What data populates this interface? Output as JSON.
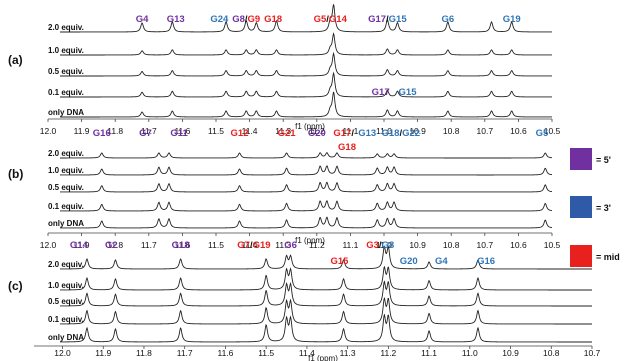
{
  "colors": {
    "five_prime": "#7030a0",
    "three_prime": "#2e75b6",
    "mid": "#e8201e",
    "trace": "#222222"
  },
  "axis_label": "f1 (ppm)",
  "legend": [
    {
      "label": "= 5'",
      "color": "#7030a0"
    },
    {
      "label": "= 3'",
      "color": "#2e5aa8"
    },
    {
      "label": "= mid",
      "color": "#e8201e"
    }
  ],
  "panels": [
    {
      "id": "(a)",
      "xlim": [
        12.0,
        10.5
      ],
      "ticks": [
        "12.0",
        "11.9",
        "11.8",
        "11.7",
        "11.6",
        "11.5",
        "11.4",
        "11.3",
        "11.2",
        "11.1",
        "11.0",
        "10.9",
        "10.8",
        "10.7",
        "10.6",
        "10.5"
      ],
      "traces": [
        "2.0 equiv.",
        "1.0 equiv.",
        "0.5 equiv.",
        "0.1 equiv.",
        "only DNA"
      ],
      "peaks": [
        11.72,
        11.63,
        11.47,
        11.41,
        11.38,
        11.32,
        11.16,
        11.15,
        10.99,
        10.96,
        10.81,
        10.68,
        10.62
      ],
      "labels": [
        {
          "parts": [
            {
              "t": "G4",
              "c": "five_prime"
            }
          ],
          "ppm": 11.72
        },
        {
          "parts": [
            {
              "t": "G13",
              "c": "five_prime"
            }
          ],
          "ppm": 11.62
        },
        {
          "parts": [
            {
              "t": "G24",
              "c": "three_prime"
            }
          ],
          "ppm": 11.49
        },
        {
          "parts": [
            {
              "t": "G8",
              "c": "five_prime"
            },
            {
              "t": "/",
              "c": "black"
            },
            {
              "t": "G9",
              "c": "mid"
            }
          ],
          "ppm": 11.41
        },
        {
          "parts": [
            {
              "t": "G18",
              "c": "mid"
            }
          ],
          "ppm": 11.33
        },
        {
          "parts": [
            {
              "t": "G5",
              "c": "mid"
            },
            {
              "t": "/",
              "c": "black"
            },
            {
              "t": "G14",
              "c": "mid"
            }
          ],
          "ppm": 11.16
        },
        {
          "parts": [
            {
              "t": "G17",
              "c": "five_prime"
            },
            {
              "t": "/",
              "c": "black"
            },
            {
              "t": "G15",
              "c": "three_prime"
            }
          ],
          "ppm": 10.99
        },
        {
          "parts": [
            {
              "t": "G6",
              "c": "three_prime"
            }
          ],
          "ppm": 10.81
        },
        {
          "parts": [
            {
              "t": "G19",
              "c": "three_prime"
            }
          ],
          "ppm": 10.62
        },
        {
          "parts": [
            {
              "t": "G17",
              "c": "five_prime"
            }
          ],
          "ppm": 11.01,
          "low": true
        },
        {
          "parts": [
            {
              "t": "G15",
              "c": "three_prime"
            }
          ],
          "ppm": 10.93,
          "low": true
        }
      ]
    },
    {
      "id": "(b)",
      "xlim": [
        12.0,
        10.5
      ],
      "ticks": [
        "12.0",
        "11.9",
        "11.8",
        "11.7",
        "11.6",
        "11.5",
        "11.4",
        "11.3",
        "11.2",
        "11.1",
        "11.0",
        "10.9",
        "10.8",
        "10.7",
        "10.6",
        "10.5",
        "10."
      ],
      "traces": [
        "2.0 equiv.",
        "1.0 equiv.",
        "0.5 equiv.",
        "0.1 equiv.",
        "only DNA"
      ],
      "peaks": [
        11.84,
        11.67,
        11.64,
        11.43,
        11.29,
        11.19,
        11.17,
        11.14,
        11.02,
        10.99,
        10.97,
        10.52
      ],
      "labels": [
        {
          "parts": [
            {
              "t": "G16",
              "c": "five_prime"
            }
          ],
          "ppm": 11.84
        },
        {
          "parts": [
            {
              "t": "G7",
              "c": "five_prime"
            }
          ],
          "ppm": 11.71
        },
        {
          "parts": [
            {
              "t": "G11",
              "c": "five_prime"
            }
          ],
          "ppm": 11.61
        },
        {
          "parts": [
            {
              "t": "G12",
              "c": "mid"
            }
          ],
          "ppm": 11.43
        },
        {
          "parts": [
            {
              "t": "G21",
              "c": "mid"
            }
          ],
          "ppm": 11.29
        },
        {
          "parts": [
            {
              "t": "G20",
              "c": "five_prime"
            }
          ],
          "ppm": 11.2
        },
        {
          "parts": [
            {
              "t": "G17",
              "c": "mid"
            },
            {
              "t": "/",
              "c": "black"
            }
          ],
          "ppm": 11.12
        },
        {
          "parts": [
            {
              "t": "G13",
              "c": "three_prime"
            }
          ],
          "ppm": 11.05
        },
        {
          "parts": [
            {
              "t": "G18",
              "c": "three_prime"
            },
            {
              "t": "/",
              "c": "black"
            },
            {
              "t": "G22",
              "c": "three_prime"
            }
          ],
          "ppm": 10.95
        },
        {
          "parts": [
            {
              "t": "G5",
              "c": "three_prime"
            }
          ],
          "ppm": 10.53
        },
        {
          "parts": [
            {
              "t": "G18",
              "c": "mid"
            }
          ],
          "ppm": 11.11,
          "low": true
        }
      ]
    },
    {
      "id": "(c)",
      "xlim": [
        12.07,
        10.7
      ],
      "ticks": [
        "12.0",
        "11.9",
        "11.8",
        "11.7",
        "11.6",
        "11.5",
        "11.4",
        "11.3",
        "11.2",
        "11.1",
        "11.0",
        "10.9",
        "10.8",
        "10.7"
      ],
      "traces": [
        "2.0 equiv.",
        "1.0 equiv.",
        "0.5 equiv.",
        "0.1 equiv.",
        "only DNA"
      ],
      "peaks": [
        11.94,
        11.87,
        11.71,
        11.5,
        11.45,
        11.44,
        11.31,
        11.21,
        11.2,
        11.1,
        10.98
      ],
      "labels": [
        {
          "parts": [
            {
              "t": "G14",
              "c": "five_prime"
            }
          ],
          "ppm": 11.96
        },
        {
          "parts": [
            {
              "t": "G2",
              "c": "five_prime"
            }
          ],
          "ppm": 11.88
        },
        {
          "parts": [
            {
              "t": "G18",
              "c": "five_prime"
            }
          ],
          "ppm": 11.71
        },
        {
          "parts": [
            {
              "t": "G7",
              "c": "mid"
            },
            {
              "t": "/",
              "c": "black"
            },
            {
              "t": "G19",
              "c": "mid"
            }
          ],
          "ppm": 11.53
        },
        {
          "parts": [
            {
              "t": "G6",
              "c": "five_prime"
            }
          ],
          "ppm": 11.44
        },
        {
          "parts": [
            {
              "t": "G3",
              "c": "mid"
            },
            {
              "t": "/",
              "c": "black"
            },
            {
              "t": "G8",
              "c": "three_prime"
            }
          ],
          "ppm": 11.22
        },
        {
          "parts": [
            {
              "t": "G15",
              "c": "mid"
            }
          ],
          "ppm": 11.32,
          "low": true
        },
        {
          "parts": [
            {
              "t": "G20",
              "c": "three_prime"
            }
          ],
          "ppm": 11.15,
          "low": true
        },
        {
          "parts": [
            {
              "t": "G4",
              "c": "three_prime"
            }
          ],
          "ppm": 11.07,
          "low": true
        },
        {
          "parts": [
            {
              "t": "G16",
              "c": "three_prime"
            }
          ],
          "ppm": 10.96,
          "low": true
        }
      ]
    }
  ]
}
